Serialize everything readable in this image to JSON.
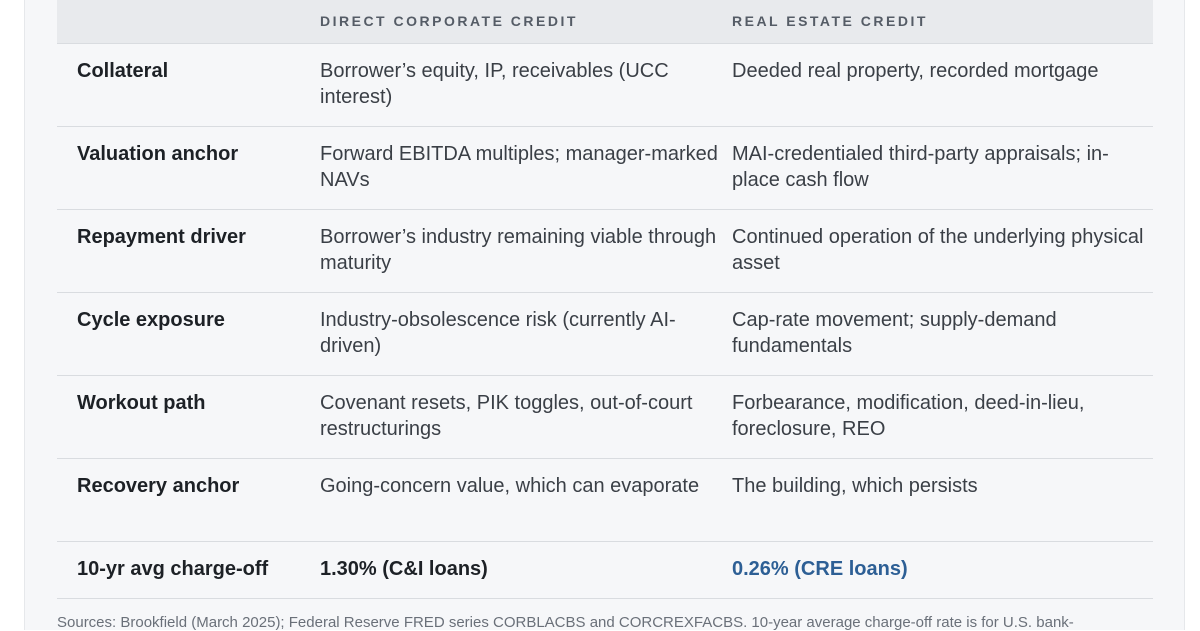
{
  "table": {
    "headers": [
      "DIRECT CORPORATE CREDIT",
      "REAL ESTATE CREDIT"
    ],
    "rows": [
      [
        "Collateral",
        "Borrower’s equity, IP, receivables (UCC interest)",
        "Deeded real property, recorded mortgage"
      ],
      [
        "Valuation anchor",
        "Forward EBITDA multiples; manager-marked NAVs",
        "MAI-credentialed third-party appraisals; in-place cash flow"
      ],
      [
        "Repayment driver",
        "Borrower’s industry remaining viable through maturity",
        "Continued operation of the underlying physical asset"
      ],
      [
        "Cycle exposure",
        "Industry-obsolescence risk (currently AI-driven)",
        "Cap-rate movement; supply-demand fundamentals"
      ],
      [
        "Workout path",
        "Covenant resets, PIK toggles, out-of-court restructurings",
        "Forbearance, modification, deed-in-lieu, foreclosure, REO"
      ],
      [
        "Recovery anchor",
        "Going-concern value, which can evaporate",
        "The building, which persists"
      ],
      [
        "10-yr avg charge-off",
        "1.30% (C&I loans)",
        "0.26% (CRE loans)"
      ]
    ]
  },
  "footer": {
    "sources": "Sources: Brookfield (March 2025); Federal Reserve FRED series CORBLACBS and CORCREXFACBS. 10-year average charge-off rate is for U.S. bank-"
  }
}
